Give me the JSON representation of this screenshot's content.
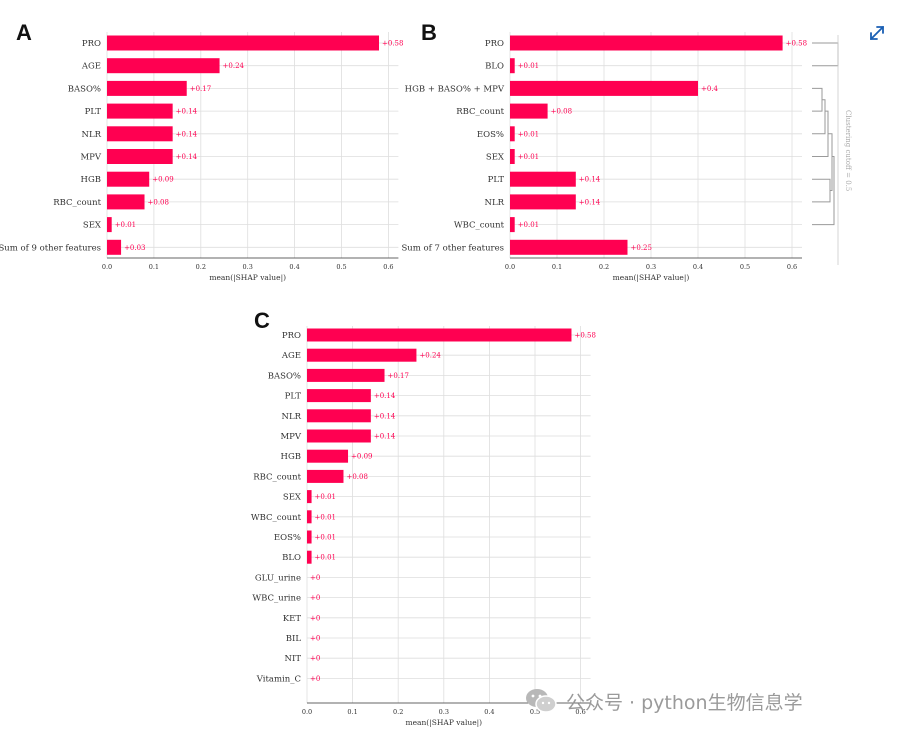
{
  "colors": {
    "bar": "#ff0051",
    "grid": "#dedede",
    "dendrogram": "#9a9a9a",
    "expand_icon": "#1a5fb4",
    "watermark": "#9a9a9a"
  },
  "icons": {
    "expand": "expand-arrows-icon",
    "wechat": "wechat-logo-icon"
  },
  "watermark": {
    "text": "公众号 · python生物信息学"
  },
  "chart_data": [
    {
      "panel": "A",
      "type": "bar",
      "orientation": "horizontal",
      "categories": [
        "PRO",
        "AGE",
        "BASO%",
        "PLT",
        "NLR",
        "MPV",
        "HGB",
        "RBC_count",
        "SEX",
        "Sum of 9 other features"
      ],
      "values": [
        0.58,
        0.24,
        0.17,
        0.14,
        0.14,
        0.14,
        0.09,
        0.08,
        0.01,
        0.03
      ],
      "value_labels": [
        "+0.58",
        "+0.24",
        "+0.17",
        "+0.14",
        "+0.14",
        "+0.14",
        "+0.09",
        "+0.08",
        "+0.01",
        "+0.03"
      ],
      "xlabel": "mean(|SHAP value|)",
      "xticks": [
        "0.0",
        "0.1",
        "0.2",
        "0.3",
        "0.4",
        "0.5",
        "0.6"
      ],
      "xlim": [
        0,
        0.6
      ]
    },
    {
      "panel": "B",
      "type": "bar",
      "orientation": "horizontal",
      "categories": [
        "PRO",
        "BLO",
        "HGB + BASO% + MPV",
        "RBC_count",
        "EOS%",
        "SEX",
        "PLT",
        "NLR",
        "WBC_count",
        "Sum of 7 other features"
      ],
      "values": [
        0.58,
        0.01,
        0.4,
        0.08,
        0.01,
        0.01,
        0.14,
        0.14,
        0.01,
        0.25
      ],
      "value_labels": [
        "+0.58",
        "+0.01",
        "+0.4",
        "+0.08",
        "+0.01",
        "+0.01",
        "+0.14",
        "+0.14",
        "+0.01",
        "+0.25"
      ],
      "xlabel": "mean(|SHAP value|)",
      "xticks": [
        "0.0",
        "0.1",
        "0.2",
        "0.3",
        "0.4",
        "0.5",
        "0.6"
      ],
      "xlim": [
        0,
        0.6
      ],
      "clustering_label": "Clustering cutoff = 0.5"
    },
    {
      "panel": "C",
      "type": "bar",
      "orientation": "horizontal",
      "categories": [
        "PRO",
        "AGE",
        "BASO%",
        "PLT",
        "NLR",
        "MPV",
        "HGB",
        "RBC_count",
        "SEX",
        "WBC_count",
        "EOS%",
        "BLO",
        "GLU_urine",
        "WBC_urine",
        "KET",
        "BIL",
        "NIT",
        "Vitamin_C"
      ],
      "values": [
        0.58,
        0.24,
        0.17,
        0.14,
        0.14,
        0.14,
        0.09,
        0.08,
        0.01,
        0.01,
        0.01,
        0.01,
        0,
        0,
        0,
        0,
        0,
        0
      ],
      "value_labels": [
        "+0.58",
        "+0.24",
        "+0.17",
        "+0.14",
        "+0.14",
        "+0.14",
        "+0.09",
        "+0.08",
        "+0.01",
        "+0.01",
        "+0.01",
        "+0.01",
        "+0",
        "+0",
        "+0",
        "+0",
        "+0",
        "+0"
      ],
      "xlabel": "mean(|SHAP value|)",
      "xticks": [
        "0.0",
        "0.1",
        "0.2",
        "0.3",
        "0.4",
        "0.5",
        "0.6"
      ],
      "xlim": [
        0,
        0.6
      ]
    }
  ]
}
